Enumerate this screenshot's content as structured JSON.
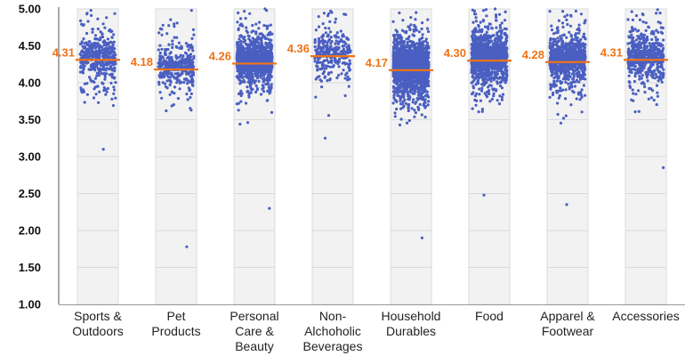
{
  "chart_data": {
    "type": "scatter",
    "subtype": "jitter-strip-with-mean",
    "title": "",
    "xlabel": "",
    "ylabel": "",
    "ylim": [
      1.0,
      5.0
    ],
    "yticks": [
      "1.00",
      "1.50",
      "2.00",
      "2.50",
      "3.00",
      "3.50",
      "4.00",
      "4.50",
      "5.00"
    ],
    "grid": true,
    "point_color": "#4a5fc1",
    "mean_color": "#f07316",
    "categories": [
      {
        "label": [
          "Sports &",
          "Outdoors"
        ],
        "mean": 4.31,
        "mean_label": "4.31",
        "n": 420,
        "min": 3.1,
        "max": 4.98
      },
      {
        "label": [
          "Pet",
          "Products"
        ],
        "mean": 4.18,
        "mean_label": "4.18",
        "n": 380,
        "min": 1.78,
        "max": 4.98
      },
      {
        "label": [
          "Personal",
          "Care &",
          "Beauty"
        ],
        "mean": 4.26,
        "mean_label": "4.26",
        "n": 1100,
        "min": 2.3,
        "max": 5.0
      },
      {
        "label": [
          "Non-",
          "Alchoholic",
          "Beverages"
        ],
        "mean": 4.36,
        "mean_label": "4.36",
        "n": 300,
        "min": 3.25,
        "max": 4.97
      },
      {
        "label": [
          "Household",
          "Durables"
        ],
        "mean": 4.17,
        "mean_label": "4.17",
        "n": 2000,
        "min": 1.9,
        "max": 4.95
      },
      {
        "label": [
          "Food"
        ],
        "mean": 4.3,
        "mean_label": "4.30",
        "n": 1300,
        "min": 2.48,
        "max": 5.0
      },
      {
        "label": [
          "Apparel &",
          "Footwear"
        ],
        "mean": 4.28,
        "mean_label": "4.28",
        "n": 850,
        "min": 2.35,
        "max": 4.97
      },
      {
        "label": [
          "Accessories"
        ],
        "mean": 4.31,
        "mean_label": "4.31",
        "n": 560,
        "min": 2.85,
        "max": 4.99
      }
    ]
  }
}
